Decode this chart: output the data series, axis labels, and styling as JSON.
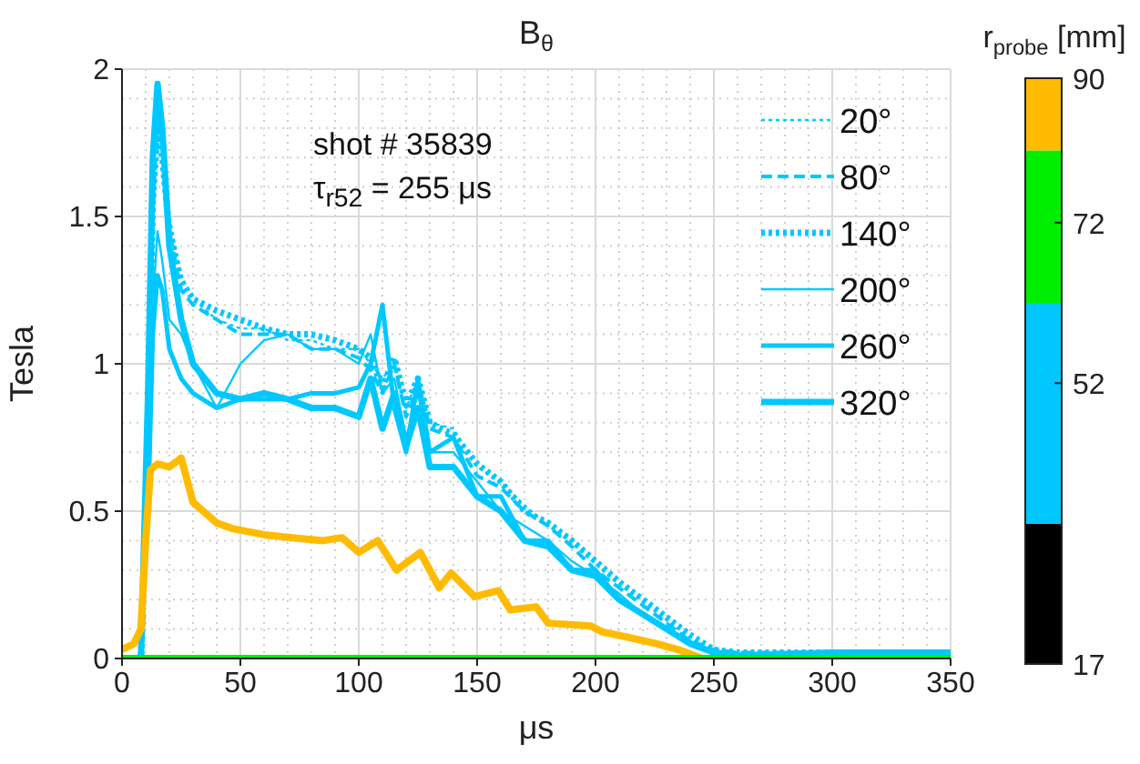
{
  "chart_data": {
    "type": "line",
    "title": "B$_{θ}$",
    "xlabel": "μs",
    "ylabel": "Tesla",
    "clabel": "r$_{probe}$ [mm]",
    "annotations": [
      "shot # 35839",
      "τ$_{r52}$ = 255 μs"
    ],
    "xlim": [
      0,
      350
    ],
    "xticks": [
      0,
      50,
      100,
      150,
      200,
      250,
      300,
      350
    ],
    "ylim": [
      0,
      2
    ],
    "yticks": [
      0,
      0.5,
      1,
      1.5,
      2
    ],
    "clim": [
      17,
      90
    ],
    "cticks": [
      17,
      52,
      72,
      90
    ],
    "colors": [
      "#000000",
      "#00c8ff",
      "#00ee00",
      "#ffbb00"
    ],
    "grid": true,
    "legend": "top right",
    "marker": "none",
    "series": [
      {
        "name": "20°",
        "color": "#00c8ff",
        "line_style": "dotted",
        "x": [
          0,
          8,
          11,
          13,
          15,
          17,
          20,
          25,
          30,
          40,
          50,
          60,
          70,
          80,
          90,
          100,
          105,
          110,
          115,
          120,
          125,
          130,
          140,
          150,
          160,
          170,
          180,
          190,
          200,
          210,
          220,
          230,
          240,
          250,
          260,
          300,
          350
        ],
        "values": [
          0,
          0,
          0.8,
          1.6,
          1.9,
          1.8,
          1.5,
          1.3,
          1.22,
          1.15,
          1.12,
          1.12,
          1.08,
          1.08,
          1.05,
          1.05,
          1.0,
          0.95,
          1.0,
          0.85,
          0.95,
          0.8,
          0.78,
          0.65,
          0.6,
          0.52,
          0.45,
          0.4,
          0.32,
          0.25,
          0.2,
          0.13,
          0.07,
          0.03,
          0.02,
          0.02,
          0.02
        ]
      },
      {
        "name": "80°",
        "color": "#00c8ff",
        "line_style": "dashed",
        "x": [
          0,
          8,
          11,
          13,
          15,
          17,
          20,
          25,
          30,
          40,
          50,
          60,
          70,
          80,
          90,
          100,
          105,
          110,
          115,
          120,
          125,
          130,
          140,
          150,
          160,
          170,
          180,
          190,
          200,
          210,
          220,
          230,
          240,
          250,
          260,
          300,
          350
        ],
        "values": [
          0,
          0,
          0.7,
          1.5,
          1.85,
          1.75,
          1.45,
          1.25,
          1.2,
          1.15,
          1.1,
          1.1,
          1.1,
          1.05,
          1.05,
          1.02,
          0.98,
          0.9,
          1.0,
          0.82,
          0.92,
          0.78,
          0.75,
          0.62,
          0.58,
          0.5,
          0.45,
          0.38,
          0.3,
          0.24,
          0.18,
          0.12,
          0.06,
          0.03,
          0.02,
          0.02,
          0.02
        ]
      },
      {
        "name": "140°",
        "color": "#00c8ff",
        "line_style": "dotted",
        "x": [
          0,
          8,
          11,
          13,
          15,
          17,
          20,
          25,
          30,
          40,
          50,
          60,
          70,
          80,
          90,
          100,
          105,
          110,
          115,
          120,
          125,
          130,
          140,
          150,
          160,
          170,
          180,
          190,
          200,
          210,
          220,
          230,
          240,
          250,
          260,
          300,
          350
        ],
        "values": [
          0,
          0,
          0.75,
          1.55,
          1.8,
          1.7,
          1.45,
          1.28,
          1.22,
          1.18,
          1.15,
          1.12,
          1.1,
          1.1,
          1.08,
          1.05,
          1.02,
          0.92,
          1.02,
          0.86,
          0.95,
          0.8,
          0.76,
          0.66,
          0.6,
          0.5,
          0.46,
          0.4,
          0.33,
          0.26,
          0.2,
          0.14,
          0.08,
          0.03,
          0.02,
          0.02,
          0.02
        ]
      },
      {
        "name": "200°",
        "color": "#00c8ff",
        "line_style": "solid",
        "x": [
          0,
          8,
          11,
          13,
          15,
          17,
          20,
          25,
          30,
          40,
          50,
          60,
          70,
          80,
          90,
          100,
          105,
          110,
          115,
          120,
          125,
          130,
          140,
          150,
          160,
          170,
          180,
          190,
          200,
          210,
          220,
          230,
          240,
          250,
          260,
          300,
          350
        ],
        "values": [
          0,
          0,
          0.6,
          1.2,
          1.45,
          1.35,
          1.15,
          1.1,
          1.0,
          0.85,
          1.0,
          1.08,
          1.1,
          1.05,
          1.05,
          1.0,
          1.1,
          0.9,
          0.95,
          0.75,
          0.9,
          0.7,
          0.7,
          0.6,
          0.5,
          0.45,
          0.4,
          0.33,
          0.28,
          0.22,
          0.15,
          0.1,
          0.06,
          0.02,
          0.01,
          0.02,
          0.02
        ]
      },
      {
        "name": "260°",
        "color": "#00c8ff",
        "line_style": "solid",
        "x": [
          0,
          8,
          11,
          13,
          15,
          17,
          20,
          25,
          30,
          40,
          50,
          60,
          70,
          80,
          90,
          100,
          105,
          110,
          115,
          120,
          125,
          130,
          140,
          150,
          160,
          170,
          180,
          190,
          200,
          210,
          220,
          230,
          240,
          250,
          260,
          300,
          350
        ],
        "values": [
          0,
          0,
          0.5,
          1.1,
          1.3,
          1.25,
          1.05,
          0.95,
          0.9,
          0.85,
          0.88,
          0.88,
          0.88,
          0.9,
          0.9,
          0.92,
          1.0,
          1.2,
          0.85,
          0.7,
          0.95,
          0.7,
          0.75,
          0.55,
          0.55,
          0.4,
          0.4,
          0.3,
          0.3,
          0.2,
          0.15,
          0.1,
          0.05,
          0.02,
          0.01,
          0.02,
          0.02
        ]
      },
      {
        "name": "320°",
        "color": "#00c8ff",
        "line_style": "solid",
        "x": [
          0,
          8,
          11,
          13,
          15,
          17,
          20,
          25,
          30,
          40,
          50,
          60,
          70,
          80,
          90,
          100,
          105,
          110,
          115,
          120,
          125,
          130,
          140,
          150,
          160,
          170,
          180,
          190,
          200,
          210,
          220,
          230,
          240,
          250,
          260,
          300,
          350
        ],
        "values": [
          0,
          0,
          0.9,
          1.7,
          1.95,
          1.8,
          1.4,
          1.15,
          1.0,
          0.9,
          0.88,
          0.9,
          0.88,
          0.85,
          0.85,
          0.82,
          0.95,
          0.78,
          0.9,
          0.72,
          0.85,
          0.65,
          0.65,
          0.55,
          0.5,
          0.4,
          0.38,
          0.3,
          0.28,
          0.2,
          0.15,
          0.1,
          0.05,
          0.02,
          0.01,
          0.02,
          0.02
        ]
      },
      {
        "color": "#ffbb00",
        "line_style": "solid",
        "x": [
          0,
          5,
          8,
          10,
          12,
          15,
          20,
          25,
          30,
          40,
          47,
          60,
          72,
          85,
          93,
          100,
          108,
          116,
          126,
          134,
          139,
          149,
          159,
          164,
          175,
          180,
          198,
          203,
          215,
          226,
          235,
          245
        ],
        "values": [
          0.03,
          0.05,
          0.1,
          0.4,
          0.64,
          0.66,
          0.65,
          0.68,
          0.53,
          0.46,
          0.44,
          0.42,
          0.41,
          0.4,
          0.41,
          0.36,
          0.4,
          0.3,
          0.36,
          0.24,
          0.29,
          0.21,
          0.23,
          0.165,
          0.175,
          0.12,
          0.11,
          0.09,
          0.07,
          0.05,
          0.03,
          0
        ]
      },
      {
        "color": "#00ee00",
        "line_style": "solid",
        "x": [
          0,
          350
        ],
        "values": [
          0,
          0
        ]
      }
    ]
  }
}
